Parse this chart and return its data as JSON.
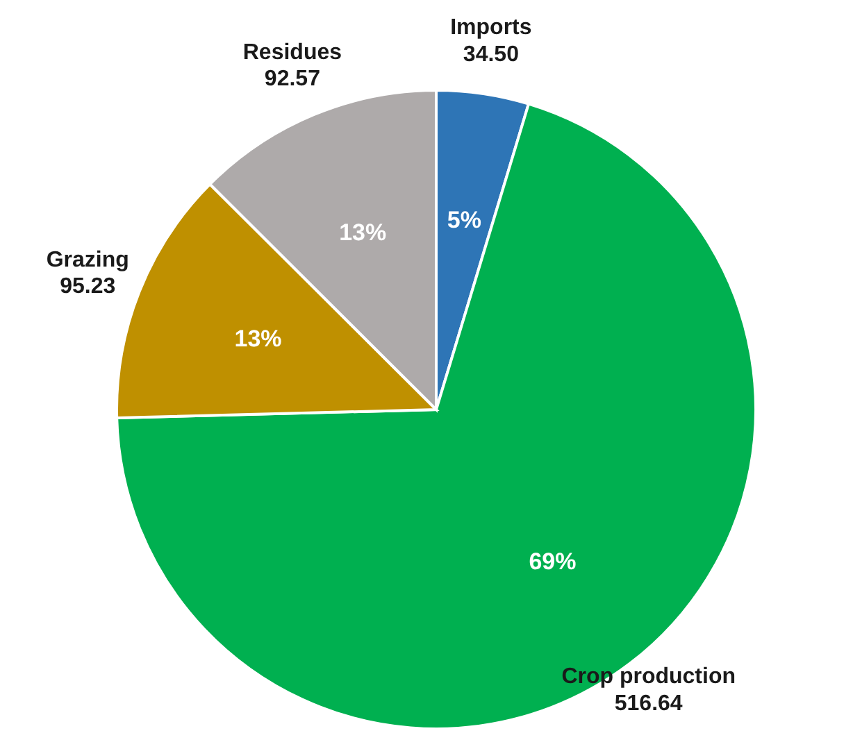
{
  "chart_data": {
    "type": "pie",
    "categories": [
      "Imports",
      "Crop production",
      "Grazing",
      "Residues"
    ],
    "values": [
      34.5,
      516.64,
      95.23,
      92.57
    ],
    "value_labels": [
      "34.50",
      "516.64",
      "95.23",
      "92.57"
    ],
    "colors": [
      "#2e75b6",
      "#00b050",
      "#bf9000",
      "#aeaaaa"
    ],
    "annotations": [
      {
        "text": "5%",
        "x": "Imports"
      },
      {
        "text": "69%",
        "x": "Crop production"
      },
      {
        "text": "13%",
        "x": "Grazing"
      },
      {
        "text": "13%",
        "x": "Residues"
      }
    ],
    "legend": false
  }
}
